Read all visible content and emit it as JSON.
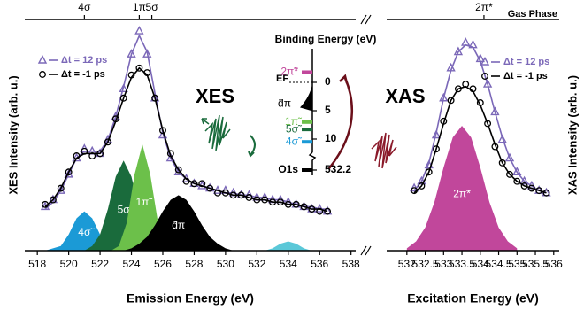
{
  "chart_data": [
    {
      "type": "scatter",
      "annotation": "XES",
      "xlabel": "Emission Energy (eV)",
      "ylabel": "XES Intensity (arb. u.)",
      "xlim": [
        517.2,
        538.3
      ],
      "xticks": [
        518,
        520,
        522,
        524,
        526,
        528,
        530,
        532,
        534,
        536,
        538
      ],
      "ylim": [
        0,
        1
      ],
      "x2ticks": [
        {
          "value": 521,
          "label": "4σ"
        },
        {
          "value": 524.5,
          "label": "1π"
        },
        {
          "value": 525.3,
          "label": "5σ"
        }
      ],
      "series": [
        {
          "name": "Δt = 12 ps",
          "color": "#7b68b8",
          "marker": "triangle",
          "x": [
            518.5,
            519,
            519.5,
            520,
            520.5,
            521,
            521.5,
            522,
            522.5,
            523,
            523.5,
            524,
            524.5,
            525,
            525.5,
            526,
            526.5,
            527,
            527.5,
            528,
            528.5,
            529,
            529.5,
            530,
            530.5,
            531,
            531.5,
            532,
            532.5,
            533,
            533.5,
            534,
            534.5,
            535,
            535.5,
            536,
            536.5
          ],
          "values": [
            0.19,
            0.22,
            0.26,
            0.33,
            0.4,
            0.44,
            0.43,
            0.42,
            0.48,
            0.58,
            0.7,
            0.85,
            0.95,
            0.85,
            0.66,
            0.5,
            0.4,
            0.34,
            0.31,
            0.29,
            0.28,
            0.27,
            0.26,
            0.26,
            0.25,
            0.24,
            0.24,
            0.23,
            0.23,
            0.22,
            0.22,
            0.21,
            0.2,
            0.19,
            0.18,
            0.18,
            0.17
          ],
          "fit": [
            0.18,
            0.21,
            0.26,
            0.33,
            0.4,
            0.43,
            0.43,
            0.43,
            0.48,
            0.58,
            0.71,
            0.85,
            0.93,
            0.86,
            0.68,
            0.51,
            0.4,
            0.34,
            0.31,
            0.29,
            0.28,
            0.27,
            0.26,
            0.25,
            0.25,
            0.24,
            0.24,
            0.23,
            0.23,
            0.22,
            0.22,
            0.21,
            0.2,
            0.19,
            0.19,
            0.18,
            0.18
          ]
        },
        {
          "name": "Δt = -1 ps",
          "color": "#000000",
          "marker": "circle",
          "x": [
            518.5,
            519,
            519.5,
            520,
            520.5,
            521,
            521.5,
            522,
            522.5,
            523,
            523.5,
            524,
            524.5,
            525,
            525.5,
            526,
            526.5,
            527,
            527.5,
            528,
            528.5,
            529,
            529.5,
            530,
            530.5,
            531,
            531.5,
            532,
            532.5,
            533,
            533.5,
            534,
            534.5,
            535,
            535.5,
            536,
            536.5
          ],
          "values": [
            0.2,
            0.22,
            0.27,
            0.34,
            0.41,
            0.43,
            0.41,
            0.42,
            0.47,
            0.57,
            0.66,
            0.76,
            0.79,
            0.77,
            0.66,
            0.52,
            0.42,
            0.35,
            0.3,
            0.29,
            0.29,
            0.27,
            0.25,
            0.25,
            0.24,
            0.24,
            0.23,
            0.22,
            0.22,
            0.21,
            0.21,
            0.2,
            0.2,
            0.19,
            0.18,
            0.17,
            0.17
          ],
          "fit": [
            0.19,
            0.22,
            0.27,
            0.34,
            0.4,
            0.42,
            0.42,
            0.42,
            0.47,
            0.56,
            0.66,
            0.75,
            0.79,
            0.76,
            0.66,
            0.52,
            0.41,
            0.35,
            0.31,
            0.29,
            0.28,
            0.27,
            0.26,
            0.25,
            0.24,
            0.24,
            0.23,
            0.22,
            0.22,
            0.21,
            0.21,
            0.2,
            0.2,
            0.19,
            0.18,
            0.18,
            0.17
          ]
        }
      ],
      "components": [
        {
          "label": "4σ̃",
          "color": "#1b9ad6",
          "x": [
            518.5,
            519,
            519.5,
            520,
            520.5,
            521,
            521.5,
            522,
            522.5,
            523,
            523.5
          ],
          "values": [
            0.0,
            0.01,
            0.02,
            0.07,
            0.14,
            0.17,
            0.14,
            0.07,
            0.02,
            0.01,
            0.0
          ]
        },
        {
          "label": "5σ̃",
          "color": "#1a6b3c",
          "x": [
            520.5,
            521,
            521.5,
            522,
            522.5,
            523,
            523.5,
            524,
            524.5,
            525,
            525.5,
            526,
            526.5
          ],
          "values": [
            0.0,
            0.0,
            0.02,
            0.07,
            0.18,
            0.32,
            0.39,
            0.32,
            0.18,
            0.07,
            0.02,
            0.0,
            0.0
          ]
        },
        {
          "label": "1π̃",
          "color": "#6cc04a",
          "x": [
            522.7,
            523.2,
            523.7,
            524.2,
            524.7,
            525.2,
            525.7,
            526.2,
            526.7
          ],
          "values": [
            0.0,
            0.02,
            0.12,
            0.33,
            0.46,
            0.33,
            0.12,
            0.02,
            0.0
          ]
        },
        {
          "label": "d̃π",
          "color": "#000000",
          "x": [
            523.5,
            524,
            524.5,
            525,
            525.5,
            526,
            526.5,
            527,
            527.5,
            528,
            528.5,
            529,
            529.5,
            530,
            530.5
          ],
          "values": [
            0.0,
            0.01,
            0.03,
            0.06,
            0.11,
            0.17,
            0.22,
            0.24,
            0.22,
            0.17,
            0.11,
            0.06,
            0.03,
            0.01,
            0.0
          ]
        },
        {
          "color": "#5bc8d8",
          "x": [
            532,
            532.5,
            533,
            533.5,
            534,
            534.5,
            535,
            535.5,
            536
          ],
          "values": [
            0.0,
            0.0,
            0.01,
            0.03,
            0.04,
            0.03,
            0.01,
            0.0,
            0.0
          ]
        }
      ]
    },
    {
      "type": "scatter",
      "annotation": "XAS",
      "corner_note": "Gas Phase",
      "xlabel": "Excitation Energy (eV)",
      "ylabel": "XAS Intensity (arb. u.)",
      "xlim": [
        531.45,
        536.15
      ],
      "xticks": [
        532,
        532.5,
        533,
        533.5,
        534,
        534.5,
        535,
        535.5,
        536
      ],
      "ylim": [
        0,
        1
      ],
      "x2ticks": [
        {
          "value": 534.1,
          "label": "2π*"
        }
      ],
      "series": [
        {
          "name": "Δt = 12 ps",
          "color": "#7b68b8",
          "marker": "triangle",
          "x": [
            532.2,
            532.4,
            532.6,
            532.8,
            533,
            533.2,
            533.4,
            533.6,
            533.8,
            534,
            534.2,
            534.4,
            534.6,
            534.8,
            535,
            535.2,
            535.4,
            535.6,
            535.8
          ],
          "values": [
            0.27,
            0.3,
            0.37,
            0.5,
            0.66,
            0.79,
            0.86,
            0.9,
            0.89,
            0.83,
            0.72,
            0.6,
            0.48,
            0.4,
            0.34,
            0.3,
            0.28,
            0.26,
            0.25
          ],
          "fit": [
            0.26,
            0.3,
            0.38,
            0.51,
            0.66,
            0.78,
            0.86,
            0.89,
            0.88,
            0.82,
            0.72,
            0.6,
            0.49,
            0.4,
            0.34,
            0.3,
            0.28,
            0.26,
            0.25
          ]
        },
        {
          "name": "Δt = -1 ps",
          "color": "#000000",
          "marker": "circle",
          "x": [
            532.2,
            532.4,
            532.6,
            532.8,
            533,
            533.2,
            533.4,
            533.6,
            533.8,
            534,
            534.2,
            534.4,
            534.6,
            534.8,
            535,
            535.2,
            535.4,
            535.6,
            535.8
          ],
          "values": [
            0.26,
            0.28,
            0.34,
            0.44,
            0.56,
            0.65,
            0.7,
            0.72,
            0.7,
            0.64,
            0.55,
            0.45,
            0.38,
            0.33,
            0.3,
            0.28,
            0.27,
            0.26,
            0.25
          ],
          "fit": [
            0.25,
            0.28,
            0.34,
            0.44,
            0.55,
            0.65,
            0.7,
            0.71,
            0.69,
            0.63,
            0.55,
            0.46,
            0.38,
            0.33,
            0.3,
            0.28,
            0.27,
            0.26,
            0.25
          ]
        }
      ],
      "components": [
        {
          "label": "2π̃*",
          "color": "#c1479b",
          "x": [
            532,
            532.25,
            532.5,
            532.75,
            533,
            533.25,
            533.5,
            533.75,
            534,
            534.25,
            534.5,
            534.75,
            535
          ],
          "values": [
            0.01,
            0.04,
            0.1,
            0.21,
            0.36,
            0.49,
            0.54,
            0.49,
            0.36,
            0.21,
            0.1,
            0.04,
            0.01
          ]
        }
      ]
    }
  ],
  "inset": {
    "title": "Binding Energy (eV)",
    "ticks": [
      0,
      5,
      10,
      {
        "value": 532.2,
        "label": "532.2"
      }
    ],
    "fermi_label": "EF",
    "levels": [
      {
        "label": "2π̃*",
        "energy": -1.8,
        "color": "#c1479b"
      },
      {
        "label": "d̃π",
        "energy": 3.5,
        "color": "#000000"
      },
      {
        "label": "1π̃",
        "energy": 7,
        "color": "#6cc04a"
      },
      {
        "label": "5σ̃",
        "energy": 8.3,
        "color": "#1a6b3c"
      },
      {
        "label": "4σ̃",
        "energy": 10.5,
        "color": "#1b9ad6"
      },
      {
        "label": "O1s",
        "energy": 532.2,
        "color": "#000000"
      }
    ]
  }
}
